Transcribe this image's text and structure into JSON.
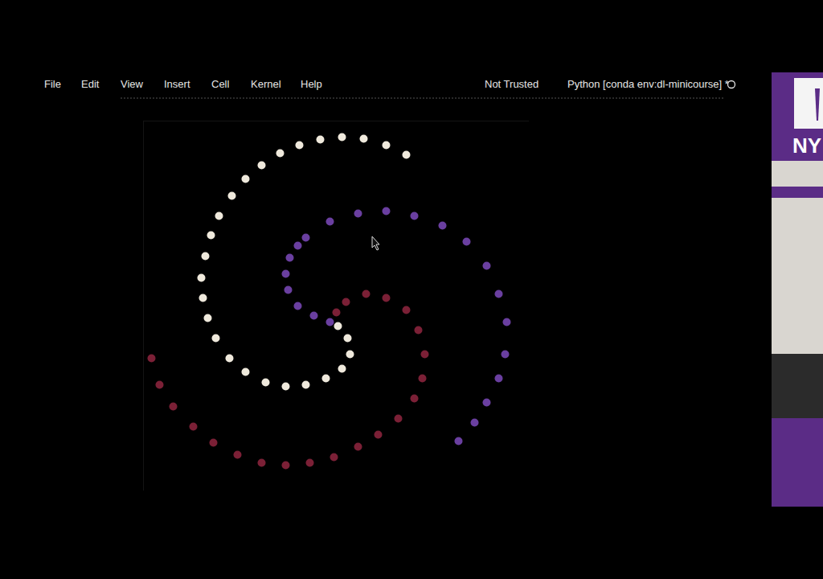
{
  "menu": [
    "File",
    "Edit",
    "View",
    "Insert",
    "Cell",
    "Kernel",
    "Help"
  ],
  "trust_status": "Not Trusted",
  "kernel": "Python [conda env:dl-minicourse] *",
  "logo_text": "NY",
  "chart_data": {
    "type": "scatter",
    "tick_labels": false,
    "xlim": [
      -2.4,
      2.4
    ],
    "ylim": [
      -2.15,
      2.45
    ],
    "series": [
      {
        "color": "#efe9dc",
        "x": [
          0.02,
          0.14,
          0.17,
          0.07,
          -0.13,
          -0.38,
          -0.63,
          -0.88,
          -1.13,
          -1.33,
          -1.5,
          -1.6,
          -1.66,
          -1.68,
          -1.63,
          -1.56,
          -1.46,
          -1.3,
          -1.13,
          -0.93,
          -0.7,
          -0.46,
          -0.2,
          0.07,
          0.34,
          0.62,
          0.87
        ],
        "y": [
          -0.1,
          -0.25,
          -0.45,
          -0.63,
          -0.75,
          -0.83,
          -0.85,
          -0.8,
          -0.67,
          -0.5,
          -0.25,
          0,
          0.25,
          0.5,
          0.77,
          1.03,
          1.27,
          1.52,
          1.73,
          1.9,
          2.05,
          2.15,
          2.22,
          2.25,
          2.23,
          2.15,
          2.03
        ]
      },
      {
        "color": "#6a3fa0",
        "x": [
          -0.08,
          -0.28,
          -0.48,
          -0.6,
          -0.63,
          -0.58,
          -0.48,
          -0.38,
          -0.08,
          0.27,
          0.62,
          0.97,
          1.32,
          1.62,
          1.87,
          2.02,
          2.12,
          2.1,
          2.02,
          1.87,
          1.72,
          1.52
        ],
        "y": [
          -0.05,
          0.03,
          0.15,
          0.35,
          0.55,
          0.75,
          0.9,
          1.0,
          1.2,
          1.3,
          1.33,
          1.27,
          1.15,
          0.95,
          0.65,
          0.3,
          -0.05,
          -0.45,
          -0.75,
          -1.05,
          -1.3,
          -1.53
        ]
      },
      {
        "color": "#7b2036",
        "x": [
          0,
          0.12,
          0.37,
          0.62,
          0.87,
          1.02,
          1.1,
          1.07,
          0.97,
          0.77,
          0.52,
          0.27,
          -0.03,
          -0.33,
          -0.63,
          -0.93,
          -1.23,
          -1.53,
          -1.78,
          -2.03,
          -2.2,
          -2.3
        ],
        "y": [
          0.07,
          0.2,
          0.3,
          0.25,
          0.1,
          -0.15,
          -0.45,
          -0.75,
          -1.0,
          -1.25,
          -1.45,
          -1.6,
          -1.73,
          -1.8,
          -1.83,
          -1.8,
          -1.7,
          -1.55,
          -1.35,
          -1.1,
          -0.83,
          -0.5
        ]
      }
    ]
  }
}
